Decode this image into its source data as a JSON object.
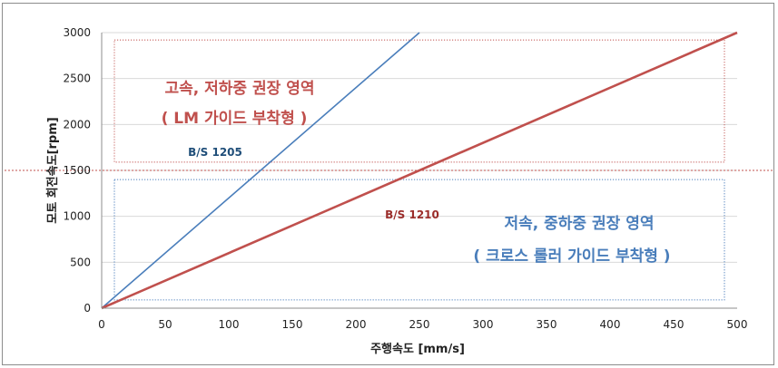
{
  "chart_data": {
    "type": "line",
    "title": "",
    "xlabel": "주행속도 [mm/s]",
    "ylabel": "모토 회전속도[rpm]",
    "xlim": [
      0,
      500
    ],
    "ylim": [
      0,
      3000
    ],
    "x_ticks": [
      "0",
      "50",
      "100",
      "150",
      "200",
      "250",
      "300",
      "350",
      "400",
      "450",
      "500"
    ],
    "y_ticks": [
      "0",
      "500",
      "1000",
      "1500",
      "2000",
      "2500",
      "3000"
    ],
    "grid": "horizontal",
    "series": [
      {
        "name": "B/S 1205",
        "color": "#4a7ebb",
        "x": [
          0,
          250
        ],
        "y": [
          0,
          3000
        ]
      },
      {
        "name": "B/S 1210",
        "color": "#c0504d",
        "x": [
          0,
          500
        ],
        "y": [
          0,
          3000
        ]
      }
    ],
    "threshold": {
      "y": 1500,
      "color": "#c0504d"
    },
    "regions": [
      {
        "line1": "고속, 저하중 권장 영역",
        "line2": "( LM 가이드 부착형 )",
        "color": "#c0504d",
        "x": [
          10,
          490
        ],
        "y": [
          1590,
          2920
        ]
      },
      {
        "line1": "저속, 중하중 권장 영역",
        "line2": "( 크로스 롤러 가이드 부착형 )",
        "color": "#4a7ebb",
        "x": [
          10,
          490
        ],
        "y": [
          90,
          1400
        ]
      }
    ]
  }
}
